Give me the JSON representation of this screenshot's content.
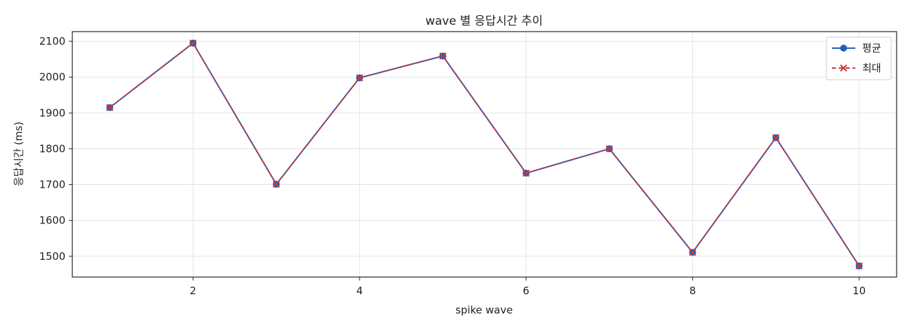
{
  "chart_data": {
    "type": "line",
    "title": "wave 별 응답시간 추이",
    "xlabel": "spike wave",
    "ylabel": "응답시간 (ms)",
    "x": [
      1,
      2,
      3,
      4,
      5,
      6,
      7,
      8,
      9,
      10
    ],
    "series": [
      {
        "name": "평균",
        "values": [
          1915,
          2095,
          1701,
          1998,
          2059,
          1732,
          1800,
          1511,
          1831,
          1473
        ],
        "color": "#1f5fbf",
        "marker": "circle",
        "linestyle": "solid"
      },
      {
        "name": "최대",
        "values": [
          1915,
          2095,
          1701,
          1998,
          2059,
          1732,
          1800,
          1511,
          1831,
          1473
        ],
        "color": "#c8383a",
        "marker": "x",
        "linestyle": "dashed"
      }
    ],
    "xlim": [
      0.55,
      10.45
    ],
    "ylim": [
      1442,
      2127
    ],
    "xticks": [
      2,
      4,
      6,
      8,
      10
    ],
    "yticks": [
      1500,
      1600,
      1700,
      1800,
      1900,
      2000,
      2100
    ],
    "grid": true,
    "legend_position": "top-right"
  }
}
